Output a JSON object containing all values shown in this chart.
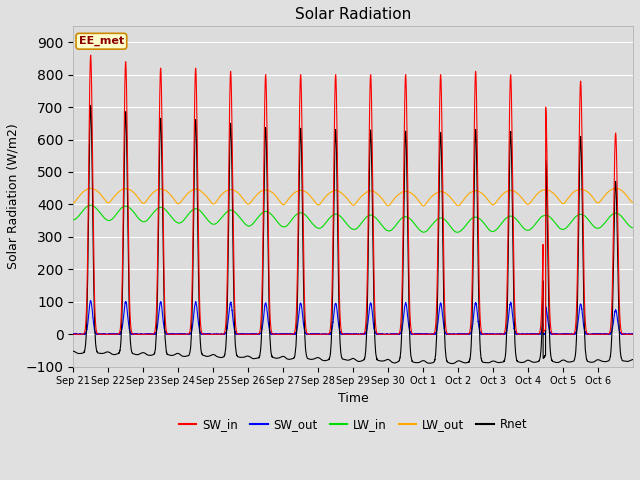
{
  "title": "Solar Radiation",
  "xlabel": "Time",
  "ylabel": "Solar Radiation (W/m2)",
  "ylim": [
    -100,
    950
  ],
  "yticks": [
    -100,
    0,
    100,
    200,
    300,
    400,
    500,
    600,
    700,
    800,
    900
  ],
  "fig_bg_color": "#e0e0e0",
  "plot_bg_color": "#dcdcdc",
  "label_box_text": "EE_met",
  "label_box_facecolor": "#ffffcc",
  "label_box_edgecolor": "#cc8800",
  "series": {
    "SW_in": {
      "color": "#ff0000",
      "lw": 0.8
    },
    "SW_out": {
      "color": "#0000ff",
      "lw": 0.8
    },
    "LW_in": {
      "color": "#00dd00",
      "lw": 0.8
    },
    "LW_out": {
      "color": "#ffaa00",
      "lw": 0.8
    },
    "Rnet": {
      "color": "#000000",
      "lw": 0.8
    }
  },
  "n_days": 16,
  "points_per_day": 288,
  "tick_labels": [
    "Sep 21",
    "Sep 22",
    "Sep 23",
    "Sep 24",
    "Sep 25",
    "Sep 26",
    "Sep 27",
    "Sep 28",
    "Sep 29",
    "Sep 30",
    "Oct 1",
    "Oct 2",
    "Oct 3",
    "Oct 4",
    "Oct 5",
    "Oct 6"
  ]
}
